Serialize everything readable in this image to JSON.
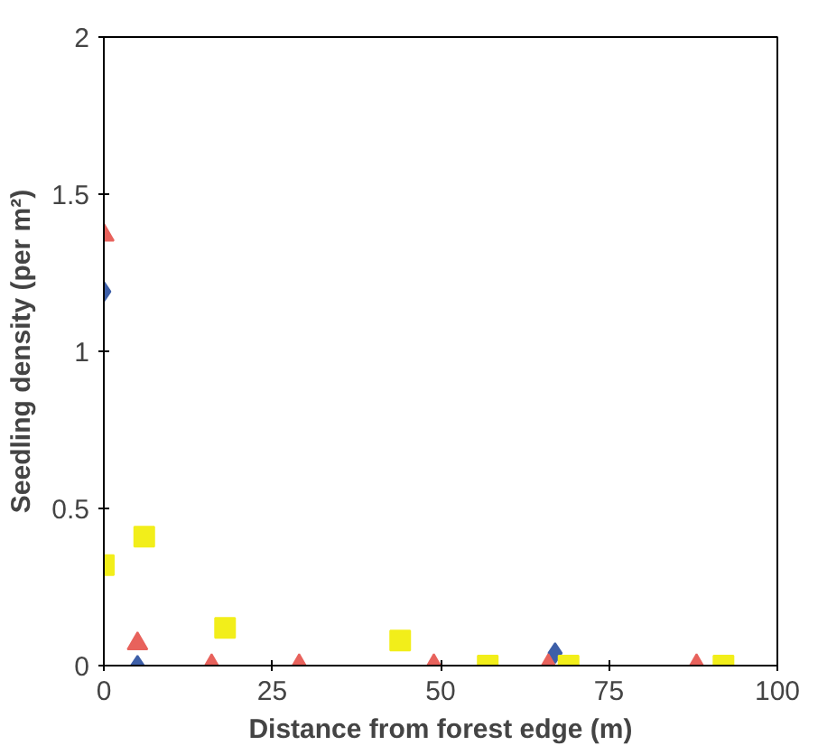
{
  "chart_data": {
    "type": "scatter",
    "xlabel": "Distance from forest edge (m)",
    "ylabel": "Seedling density (per m²)",
    "xlim": [
      0,
      100
    ],
    "xticks": [
      0,
      25,
      50,
      75,
      100
    ],
    "ylim": [
      0,
      2
    ],
    "yticks": [
      0,
      0.5,
      1,
      1.5,
      2
    ],
    "grid": false,
    "series": [
      {
        "color": "#3d5fa8",
        "marker": "diamond",
        "x": [
          0,
          5,
          67
        ],
        "values": [
          1.19,
          0,
          0.04
        ]
      },
      {
        "color": "#e8625c",
        "marker": "triangle",
        "x": [
          0,
          5,
          16,
          29,
          49,
          66,
          88
        ],
        "values": [
          1.37,
          0.07,
          0,
          0,
          0,
          0,
          0
        ]
      },
      {
        "color": "#f2ee1a",
        "marker": "square",
        "x": [
          0,
          6,
          18,
          44,
          57,
          69,
          92
        ],
        "values": [
          0.32,
          0.41,
          0.12,
          0.08,
          0,
          0,
          0
        ]
      }
    ]
  }
}
